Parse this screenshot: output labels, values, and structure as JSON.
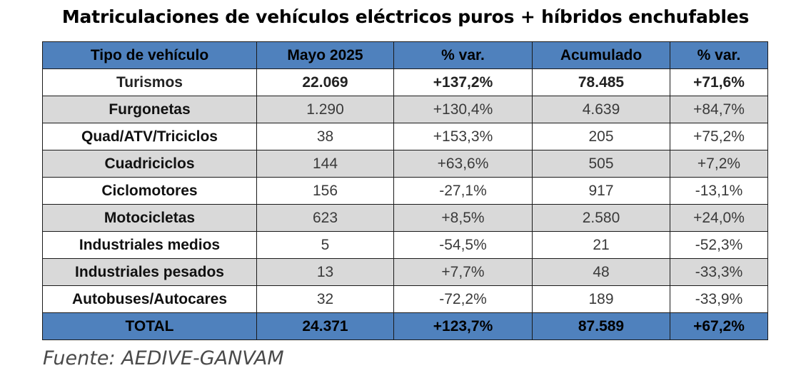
{
  "title": "Matriculaciones de vehículos eléctricos puros + híbridos enchufables",
  "table": {
    "headers": [
      "Tipo de vehículo",
      "Mayo 2025",
      "% var.",
      "Acumulado",
      "% var."
    ],
    "rows": [
      {
        "name": "Turismos",
        "may": "22.069",
        "var_may": "+137,2%",
        "acum": "78.485",
        "var_acum": "+71,6%"
      },
      {
        "name": "Furgonetas",
        "may": "1.290",
        "var_may": "+130,4%",
        "acum": "4.639",
        "var_acum": "+84,7%"
      },
      {
        "name": "Quad/ATV/Triciclos",
        "may": "38",
        "var_may": "+153,3%",
        "acum": "205",
        "var_acum": "+75,2%"
      },
      {
        "name": "Cuadriciclos",
        "may": "144",
        "var_may": "+63,6%",
        "acum": "505",
        "var_acum": "+7,2%"
      },
      {
        "name": "Ciclomotores",
        "may": "156",
        "var_may": "-27,1%",
        "acum": "917",
        "var_acum": "-13,1%"
      },
      {
        "name": "Motocicletas",
        "may": "623",
        "var_may": "+8,5%",
        "acum": "2.580",
        "var_acum": "+24,0%"
      },
      {
        "name": "Industriales medios",
        "may": "5",
        "var_may": "-54,5%",
        "acum": "21",
        "var_acum": "-52,3%"
      },
      {
        "name": "Industriales pesados",
        "may": "13",
        "var_may": "+7,7%",
        "acum": "48",
        "var_acum": "-33,3%"
      },
      {
        "name": "Autobuses/Autocares",
        "may": "32",
        "var_may": "-72,2%",
        "acum": "189",
        "var_acum": "-33,9%"
      }
    ],
    "total": {
      "name": "TOTAL",
      "may": "24.371",
      "var_may": "+123,7%",
      "acum": "87.589",
      "var_acum": "+67,2%"
    }
  },
  "source": "Fuente: AEDIVE-GANVAM",
  "colors": {
    "header_blue": "#4f81bd",
    "row_shade": "#d9d9d9",
    "row_plain": "#ffffff"
  }
}
